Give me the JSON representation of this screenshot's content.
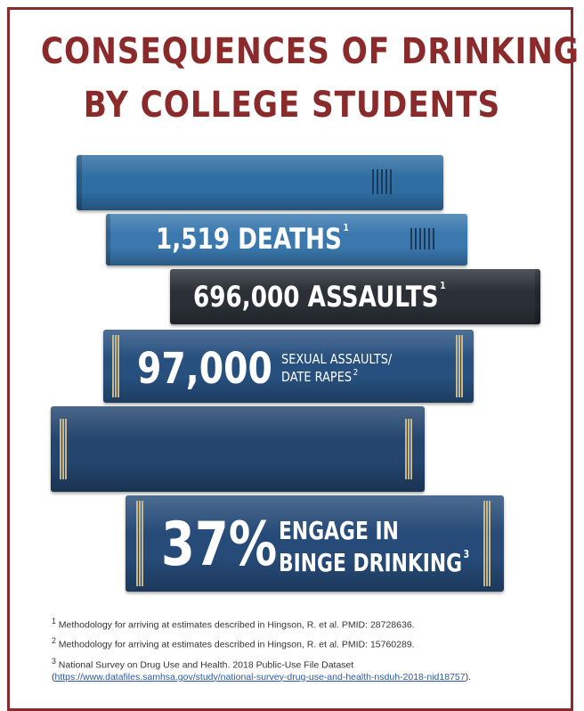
{
  "title": {
    "line1": "CONSEQUENCES OF DRINKING",
    "line2": "BY COLLEGE STUDENTS"
  },
  "books": [
    {
      "stat": "",
      "label": "",
      "note": ""
    },
    {
      "stat": "1,519 DEATHS",
      "label": "",
      "note": "1"
    },
    {
      "stat": "696,000 ASSAULTS",
      "label": "",
      "note": "1"
    },
    {
      "stat": "97,000",
      "label_line1": "SEXUAL ASSAULTS/",
      "label_line2": "DATE RAPES",
      "note": "2"
    },
    {
      "stat": "",
      "label": "",
      "note": ""
    },
    {
      "stat": "37%",
      "label_line1": "ENGAGE IN",
      "label_line2": "BINGE DRINKING",
      "note": "3"
    }
  ],
  "colors": {
    "title": "#8b2a2a",
    "frame": "#8b2a2a",
    "book_blue": "#2f6ea3",
    "book_dark": "#2a3036",
    "book_navy": "#23456e",
    "gold_bands": "#c9b98a"
  },
  "footnotes": [
    {
      "num": "1",
      "text": "Methodology for arriving at estimates described in Hingson, R. et al. PMID: 28728636."
    },
    {
      "num": "2",
      "text": "Methodology for arriving at estimates described in Hingson, R. et al. PMID: 15760289."
    },
    {
      "num": "3",
      "text": "National Survey on Drug Use and Health. 2018 Public-Use File Dataset",
      "link": "https://www.datafiles.samhsa.gov/study/national-survey-drug-use-and-health-nsduh-2018-nid18757",
      "link_open": "(",
      "link_close": ")."
    }
  ]
}
